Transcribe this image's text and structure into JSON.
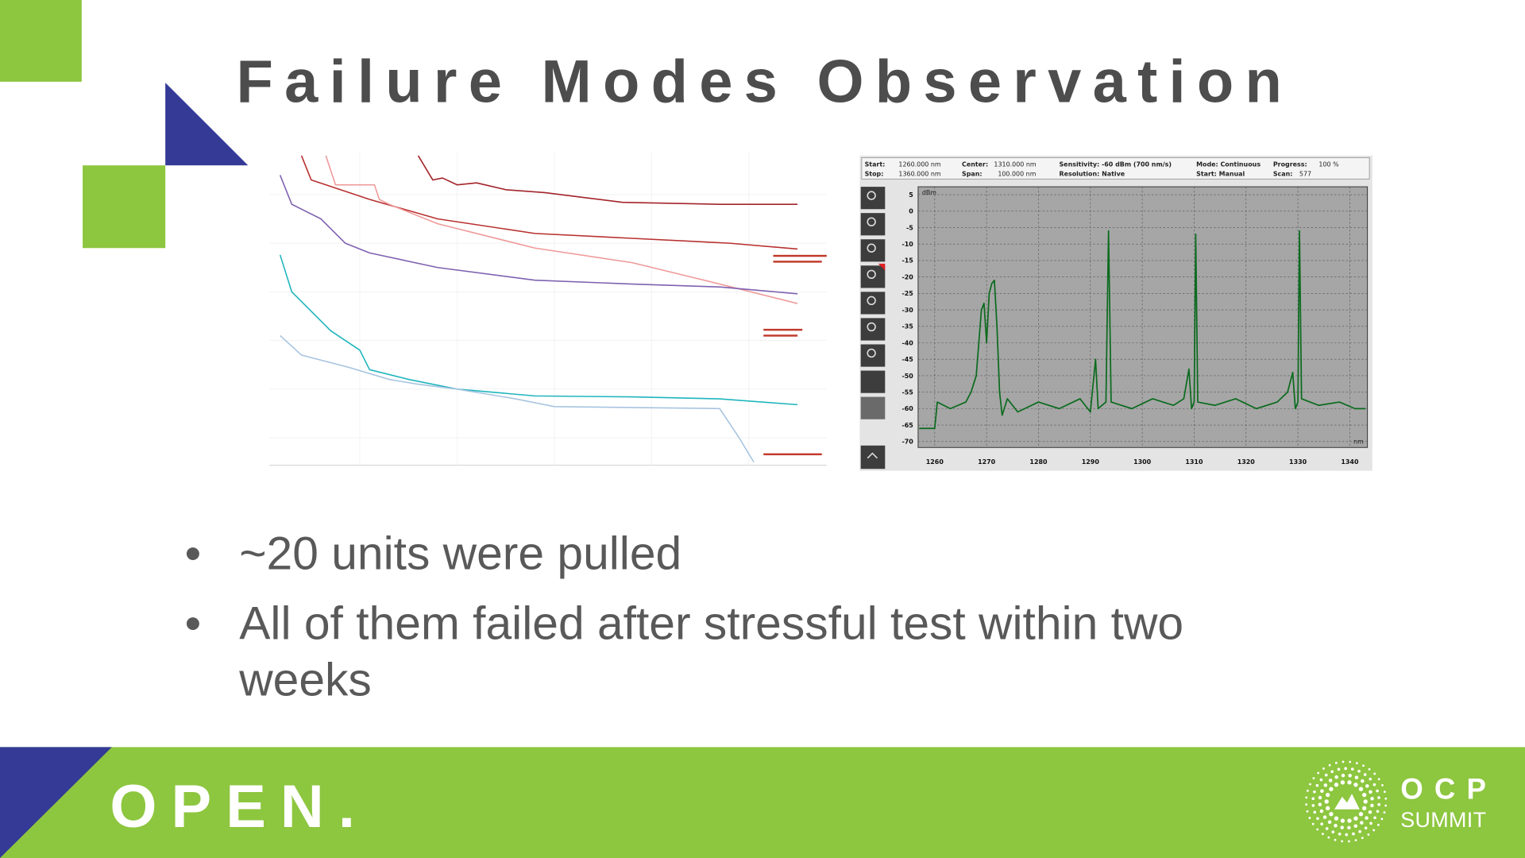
{
  "header": {
    "title": "Failure Modes Observation"
  },
  "spectrum": {
    "type": "line",
    "status": [
      [
        "Start:",
        "1260.000 nm",
        "Center:",
        "1310.000 nm",
        "Sensitivity: -60 dBm (700 nm/s)",
        "Mode: Continuous",
        "Progress:",
        "100 %"
      ],
      [
        "Stop:",
        "1360.000 nm",
        "Span:",
        "100.000 nm",
        "Resolution: Native",
        "Start: Manual",
        "Scan:",
        "577"
      ]
    ],
    "y_label": "dBm",
    "x_label": "nm",
    "color": "#0b6b1e",
    "xlim": [
      1256.8,
      1343.4
    ],
    "ylim": [
      -71.8,
      7.4
    ],
    "xticks": [
      1260,
      1270,
      1280,
      1290,
      1300,
      1310,
      1320,
      1330,
      1340
    ],
    "yticks": [
      5,
      0,
      -5,
      -10,
      -15,
      -20,
      -25,
      -30,
      -35,
      -40,
      -45,
      -50,
      -55,
      -60,
      -65,
      -70
    ],
    "grid": true,
    "x": [
      1257,
      1260,
      1260.5,
      1263,
      1266,
      1267,
      1268,
      1268.5,
      1269,
      1269.5,
      1270,
      1270.5,
      1271,
      1271.5,
      1272,
      1272.5,
      1273,
      1274,
      1276,
      1280,
      1284,
      1288,
      1290,
      1291,
      1291.5,
      1293,
      1293.5,
      1294,
      1298,
      1302,
      1306,
      1308,
      1309,
      1309.5,
      1310,
      1310.3,
      1310.7,
      1314,
      1318,
      1322,
      1326,
      1328,
      1329,
      1329.5,
      1330,
      1330.3,
      1330.7,
      1334,
      1338,
      1341,
      1343
    ],
    "values": [
      -66,
      -66,
      -58,
      -60,
      -58,
      -55,
      -50,
      -40,
      -30,
      -28,
      -40,
      -25,
      -22,
      -21,
      -35,
      -55,
      -62,
      -57,
      -61,
      -58,
      -60,
      -57,
      -61,
      -45,
      -60,
      -58,
      -6,
      -58,
      -60,
      -57,
      -59,
      -57,
      -48,
      -60,
      -58,
      -7,
      -58,
      -59,
      -57,
      -60,
      -58,
      -55,
      -49,
      -60,
      -58,
      -6,
      -57,
      -59,
      -58,
      -60,
      -60
    ]
  },
  "bullets": [
    "~20 units were pulled",
    "All of them failed after stressful test within two",
    "weeks"
  ],
  "footer": {
    "brand": "OPEN.",
    "logo_top": "OCP",
    "logo_bottom": "SUMMIT"
  }
}
